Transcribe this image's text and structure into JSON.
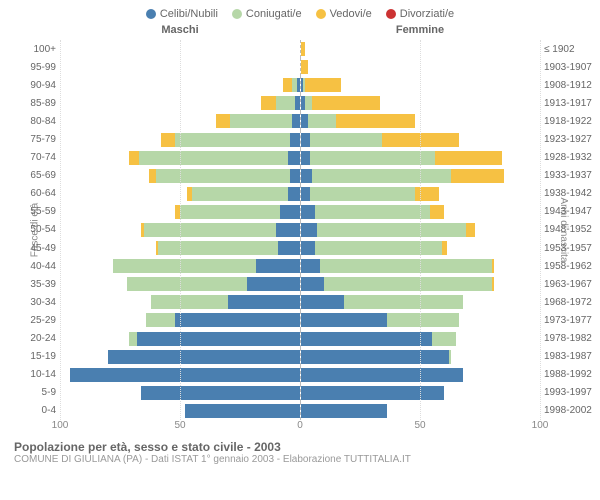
{
  "legend": [
    {
      "label": "Celibi/Nubili",
      "color": "#4a7fb0"
    },
    {
      "label": "Coniugati/e",
      "color": "#b6d7a8"
    },
    {
      "label": "Vedovi/e",
      "color": "#f6c143"
    },
    {
      "label": "Divorziati/e",
      "color": "#cc3333"
    }
  ],
  "headers": {
    "male": "Maschi",
    "female": "Femmine"
  },
  "axis_titles": {
    "left": "Fasce di età",
    "right": "Anni di nascita"
  },
  "xticks": [
    100,
    50,
    0,
    50,
    100
  ],
  "max": 100,
  "colors": {
    "celibi": "#4a7fb0",
    "coniugati": "#b6d7a8",
    "vedovi": "#f6c143",
    "divorziati": "#cc3333",
    "grid": "#dddddd",
    "divider": "#bbbbbb",
    "bg": "#ffffff"
  },
  "chart_type": "population-pyramid-stacked-bar",
  "rows": [
    {
      "age": "100+",
      "birth": "≤ 1902",
      "m": {
        "c": 0,
        "co": 0,
        "v": 0,
        "d": 0
      },
      "f": {
        "c": 0,
        "co": 0,
        "v": 2,
        "d": 0
      }
    },
    {
      "age": "95-99",
      "birth": "1903-1907",
      "m": {
        "c": 0,
        "co": 0,
        "v": 0,
        "d": 0
      },
      "f": {
        "c": 0,
        "co": 0,
        "v": 3,
        "d": 0
      }
    },
    {
      "age": "90-94",
      "birth": "1908-1912",
      "m": {
        "c": 1,
        "co": 2,
        "v": 4,
        "d": 0
      },
      "f": {
        "c": 1,
        "co": 1,
        "v": 15,
        "d": 0
      }
    },
    {
      "age": "85-89",
      "birth": "1913-1917",
      "m": {
        "c": 2,
        "co": 8,
        "v": 6,
        "d": 0
      },
      "f": {
        "c": 2,
        "co": 3,
        "v": 28,
        "d": 0
      }
    },
    {
      "age": "80-84",
      "birth": "1918-1922",
      "m": {
        "c": 3,
        "co": 26,
        "v": 6,
        "d": 0
      },
      "f": {
        "c": 3,
        "co": 12,
        "v": 33,
        "d": 0
      }
    },
    {
      "age": "75-79",
      "birth": "1923-1927",
      "m": {
        "c": 4,
        "co": 48,
        "v": 6,
        "d": 0
      },
      "f": {
        "c": 4,
        "co": 30,
        "v": 32,
        "d": 0
      }
    },
    {
      "age": "70-74",
      "birth": "1928-1932",
      "m": {
        "c": 5,
        "co": 62,
        "v": 4,
        "d": 0
      },
      "f": {
        "c": 4,
        "co": 52,
        "v": 28,
        "d": 0
      }
    },
    {
      "age": "65-69",
      "birth": "1933-1937",
      "m": {
        "c": 4,
        "co": 56,
        "v": 3,
        "d": 0
      },
      "f": {
        "c": 5,
        "co": 58,
        "v": 22,
        "d": 0
      }
    },
    {
      "age": "60-64",
      "birth": "1938-1942",
      "m": {
        "c": 5,
        "co": 40,
        "v": 2,
        "d": 0
      },
      "f": {
        "c": 4,
        "co": 44,
        "v": 10,
        "d": 0
      }
    },
    {
      "age": "55-59",
      "birth": "1943-1947",
      "m": {
        "c": 8,
        "co": 42,
        "v": 2,
        "d": 0
      },
      "f": {
        "c": 6,
        "co": 48,
        "v": 6,
        "d": 0
      }
    },
    {
      "age": "50-54",
      "birth": "1948-1952",
      "m": {
        "c": 10,
        "co": 55,
        "v": 1,
        "d": 0
      },
      "f": {
        "c": 7,
        "co": 62,
        "v": 4,
        "d": 0
      }
    },
    {
      "age": "45-49",
      "birth": "1953-1957",
      "m": {
        "c": 9,
        "co": 50,
        "v": 1,
        "d": 0
      },
      "f": {
        "c": 6,
        "co": 53,
        "v": 2,
        "d": 0
      }
    },
    {
      "age": "40-44",
      "birth": "1958-1962",
      "m": {
        "c": 18,
        "co": 60,
        "v": 0,
        "d": 0
      },
      "f": {
        "c": 8,
        "co": 72,
        "v": 1,
        "d": 0
      }
    },
    {
      "age": "35-39",
      "birth": "1963-1967",
      "m": {
        "c": 22,
        "co": 50,
        "v": 0,
        "d": 0
      },
      "f": {
        "c": 10,
        "co": 70,
        "v": 1,
        "d": 0
      }
    },
    {
      "age": "30-34",
      "birth": "1968-1972",
      "m": {
        "c": 30,
        "co": 32,
        "v": 0,
        "d": 0
      },
      "f": {
        "c": 18,
        "co": 50,
        "v": 0,
        "d": 0
      }
    },
    {
      "age": "25-29",
      "birth": "1973-1977",
      "m": {
        "c": 52,
        "co": 12,
        "v": 0,
        "d": 0
      },
      "f": {
        "c": 36,
        "co": 30,
        "v": 0,
        "d": 0
      }
    },
    {
      "age": "20-24",
      "birth": "1978-1982",
      "m": {
        "c": 68,
        "co": 3,
        "v": 0,
        "d": 0
      },
      "f": {
        "c": 55,
        "co": 10,
        "v": 0,
        "d": 0
      }
    },
    {
      "age": "15-19",
      "birth": "1983-1987",
      "m": {
        "c": 80,
        "co": 0,
        "v": 0,
        "d": 0
      },
      "f": {
        "c": 62,
        "co": 1,
        "v": 0,
        "d": 0
      }
    },
    {
      "age": "10-14",
      "birth": "1988-1992",
      "m": {
        "c": 96,
        "co": 0,
        "v": 0,
        "d": 0
      },
      "f": {
        "c": 68,
        "co": 0,
        "v": 0,
        "d": 0
      }
    },
    {
      "age": "5-9",
      "birth": "1993-1997",
      "m": {
        "c": 66,
        "co": 0,
        "v": 0,
        "d": 0
      },
      "f": {
        "c": 60,
        "co": 0,
        "v": 0,
        "d": 0
      }
    },
    {
      "age": "0-4",
      "birth": "1998-2002",
      "m": {
        "c": 48,
        "co": 0,
        "v": 0,
        "d": 0
      },
      "f": {
        "c": 36,
        "co": 0,
        "v": 0,
        "d": 0
      }
    }
  ],
  "title": "Popolazione per età, sesso e stato civile - 2003",
  "subtitle": "COMUNE DI GIULIANA (PA) - Dati ISTAT 1° gennaio 2003 - Elaborazione TUTTITALIA.IT"
}
